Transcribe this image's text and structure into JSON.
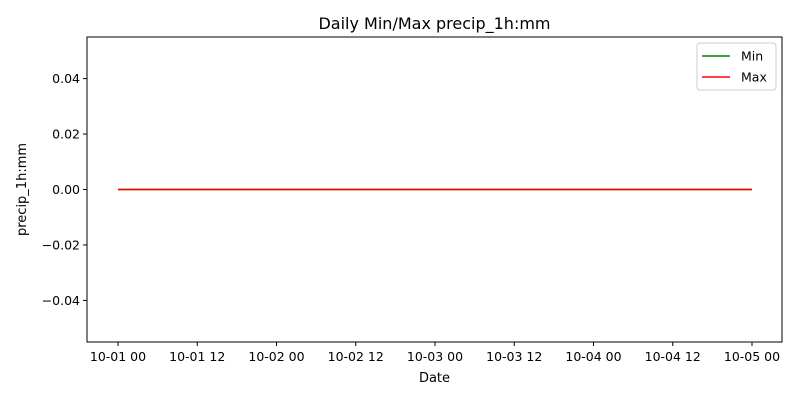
{
  "chart_data": {
    "type": "line",
    "title": "Daily Min/Max precip_1h:mm",
    "xlabel": "Date",
    "ylabel": "precip_1h:mm",
    "x": [
      "2023-10-01 00:00",
      "2023-10-02 00:00",
      "2023-10-03 00:00",
      "2023-10-04 00:00",
      "2023-10-05 00:00"
    ],
    "series": [
      {
        "name": "Min",
        "color": "#008000",
        "values": [
          0,
          0,
          0,
          0,
          0
        ]
      },
      {
        "name": "Max",
        "color": "#ff0000",
        "values": [
          0,
          0,
          0,
          0,
          0
        ]
      }
    ],
    "ylim": [
      -0.055,
      0.055
    ],
    "y_ticks": [
      0.04,
      0.02,
      0.0,
      -0.02,
      -0.04
    ],
    "y_tick_labels": [
      "0.04",
      "0.02",
      "0.00",
      "−0.02",
      "−0.04"
    ],
    "x_tick_labels": [
      "10-01 00",
      "10-01 12",
      "10-02 00",
      "10-02 12",
      "10-03 00",
      "10-03 12",
      "10-04 00",
      "10-04 12",
      "10-05 00"
    ],
    "grid": false,
    "legend_position": "top-right"
  }
}
